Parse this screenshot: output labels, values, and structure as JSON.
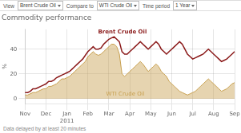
{
  "chart_data": {
    "type": "line",
    "title": "Commodity performance",
    "categories": [
      "Nov",
      null,
      null,
      null,
      null,
      null,
      null,
      null,
      "Dec",
      null,
      null,
      null,
      null,
      null,
      null,
      null,
      "Jan\n2011",
      null,
      null,
      null,
      null,
      null,
      null,
      null,
      "Feb",
      null,
      null,
      null,
      null,
      null,
      null,
      null,
      "Mar",
      null,
      null,
      null,
      null,
      null,
      null,
      null,
      "Apr",
      null,
      null,
      null,
      null,
      null,
      null,
      null,
      "May",
      null,
      null,
      null,
      null,
      null,
      null,
      null,
      "Jun",
      null,
      null,
      null,
      null,
      null,
      null,
      null,
      "Jul",
      null,
      null,
      null,
      null,
      null,
      null,
      null,
      "Aug",
      null,
      null,
      null,
      null,
      null,
      null,
      null,
      "Sep"
    ],
    "series": [
      {
        "name": "Brent Crude Oil",
        "color": "#8b1a1a",
        "values": [
          5,
          5,
          6,
          8,
          8,
          9,
          10,
          11,
          12,
          14,
          14,
          15,
          17,
          18,
          19,
          20,
          21,
          22,
          24,
          26,
          28,
          30,
          32,
          35,
          38,
          40,
          42,
          40,
          40,
          41,
          44,
          46,
          48,
          49,
          50,
          48,
          46,
          38,
          36,
          36,
          38,
          40,
          42,
          44,
          46,
          44,
          42,
          40,
          42,
          44,
          46,
          44,
          40,
          38,
          36,
          38,
          40,
          42,
          44,
          46,
          44,
          40,
          36,
          34,
          32,
          33,
          34,
          35,
          36,
          38,
          40,
          38,
          36,
          34,
          32,
          30,
          31,
          32,
          34,
          36,
          38
        ]
      },
      {
        "name": "WTI Crude Oil",
        "color": "#c8a050",
        "type": "area",
        "values": [
          3,
          3,
          4,
          5,
          5,
          6,
          7,
          8,
          8,
          10,
          10,
          11,
          12,
          14,
          16,
          16,
          17,
          18,
          20,
          22,
          24,
          26,
          28,
          30,
          34,
          36,
          38,
          36,
          35,
          36,
          38,
          40,
          42,
          44,
          44,
          42,
          36,
          20,
          18,
          20,
          22,
          24,
          26,
          28,
          30,
          28,
          25,
          22,
          24,
          26,
          28,
          26,
          22,
          20,
          18,
          14,
          12,
          10,
          8,
          6,
          5,
          4,
          3,
          4,
          5,
          6,
          8,
          10,
          12,
          14,
          16,
          14,
          12,
          10,
          8,
          6,
          7,
          8,
          10,
          12,
          13
        ]
      }
    ],
    "y_label": "%",
    "ylim": [
      -4,
      56
    ],
    "yticks": [
      0,
      20,
      40
    ],
    "grid": true,
    "controls": [
      {
        "label": "View",
        "value": "Brent Crude Oil"
      },
      {
        "label": "Compare to",
        "value": "WTI Crude Oil"
      },
      {
        "label": "Time period",
        "value": "1 Year"
      }
    ],
    "footer": "Data delayed by at least 20 minutes"
  }
}
